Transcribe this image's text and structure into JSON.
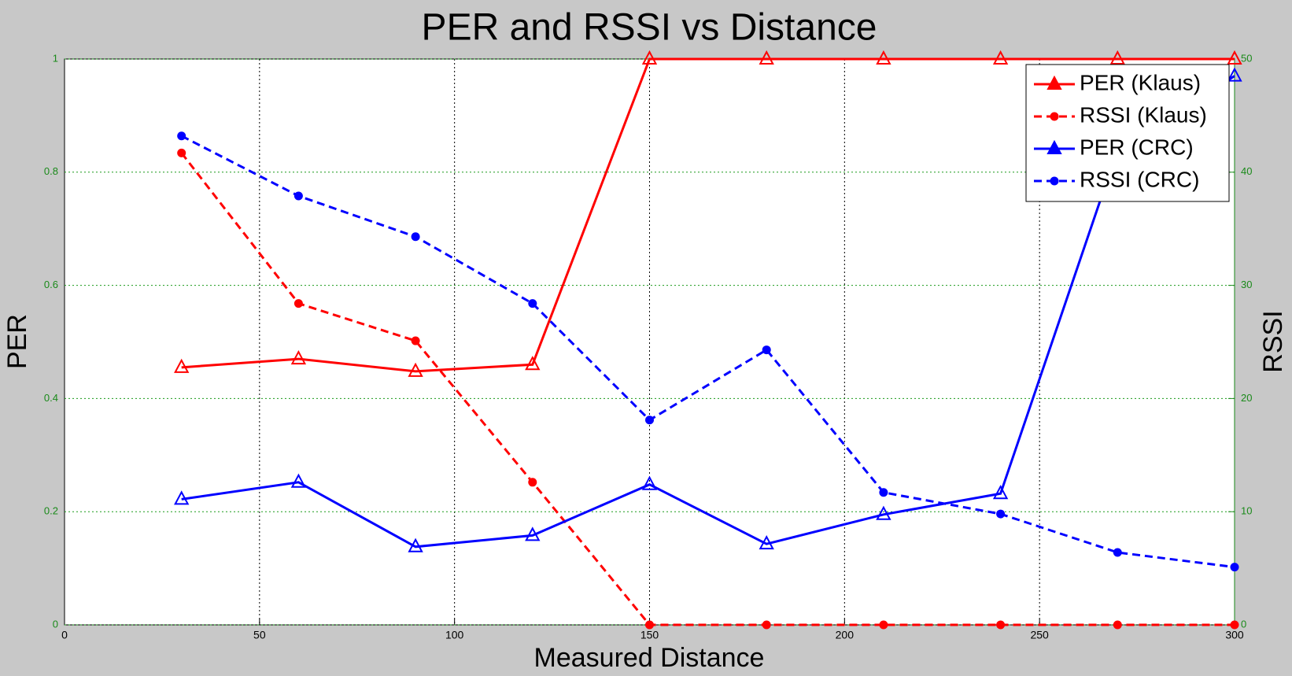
{
  "chart_data": {
    "type": "line",
    "title": "PER and RSSI vs Distance",
    "x_label": "Measured Distance",
    "y_label": "PER",
    "y2_label": "RSSI",
    "x": [
      30,
      60,
      90,
      120,
      150,
      180,
      210,
      240,
      270,
      300
    ],
    "series": [
      {
        "name": "PER (Klaus)",
        "color": "#ff0000",
        "marker": "triangle",
        "line_style": "solid",
        "axis": "y",
        "values": [
          0.455,
          0.47,
          0.448,
          0.46,
          1,
          1,
          1,
          1,
          1,
          1
        ]
      },
      {
        "name": "RSSI (Klaus)",
        "color": "#ff0000",
        "marker": "circle",
        "line_style": "dashed",
        "axis": "y2",
        "values": [
          41.7,
          28.4,
          25.1,
          12.6,
          0,
          0,
          0,
          0,
          0,
          0
        ]
      },
      {
        "name": "PER (CRC)",
        "color": "#0000ff",
        "marker": "triangle",
        "line_style": "solid",
        "axis": "y",
        "values": [
          0.222,
          0.252,
          0.138,
          0.158,
          0.248,
          0.143,
          0.195,
          0.232,
          0.84,
          0.97
        ]
      },
      {
        "name": "RSSI (CRC)",
        "color": "#0000ff",
        "marker": "circle",
        "line_style": "dashed",
        "axis": "y2",
        "values": [
          43.2,
          37.9,
          34.3,
          28.4,
          18.1,
          24.3,
          11.7,
          9.8,
          6.4,
          5.1
        ]
      }
    ],
    "xlim": [
      0,
      300
    ],
    "xticks": [
      0,
      50,
      100,
      150,
      200,
      250,
      300
    ],
    "ylim": [
      0,
      1
    ],
    "yticks": [
      0,
      0.2,
      0.4,
      0.6,
      0.8,
      1
    ],
    "y2lim": [
      0,
      50
    ],
    "y2ticks": [
      0,
      10,
      20,
      30,
      40,
      50
    ],
    "grid": true,
    "legend": "upper right"
  }
}
